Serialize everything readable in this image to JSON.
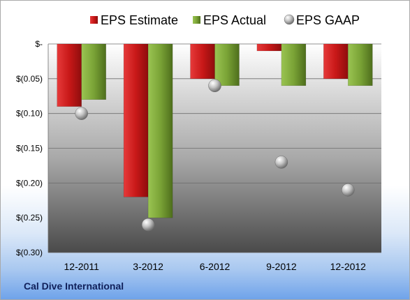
{
  "company": "Cal Dive International",
  "chart_data": {
    "type": "bar",
    "categories": [
      "12-2011",
      "3-2012",
      "6-2012",
      "9-2012",
      "12-2012"
    ],
    "series": [
      {
        "name": "EPS Estimate",
        "type": "bar",
        "values": [
          -0.09,
          -0.22,
          -0.05,
          -0.01,
          -0.05
        ],
        "color": "#cc1f1f"
      },
      {
        "name": "EPS Actual",
        "type": "bar",
        "values": [
          -0.08,
          -0.25,
          -0.06,
          -0.06,
          -0.06
        ],
        "color": "#7fa83a"
      },
      {
        "name": "EPS GAAP",
        "type": "scatter",
        "values": [
          -0.1,
          -0.26,
          -0.06,
          -0.17,
          -0.21
        ],
        "color": "#b8b8b8"
      }
    ],
    "ylim": [
      -0.3,
      0
    ],
    "yticks": [
      0,
      -0.05,
      -0.1,
      -0.15,
      -0.2,
      -0.25,
      -0.3
    ],
    "ytick_labels": [
      "$-",
      "$(0.05)",
      "$(0.10)",
      "$(0.15)",
      "$(0.20)",
      "$(0.25)",
      "$(0.30)"
    ],
    "legend_position": "top",
    "grid": true
  }
}
